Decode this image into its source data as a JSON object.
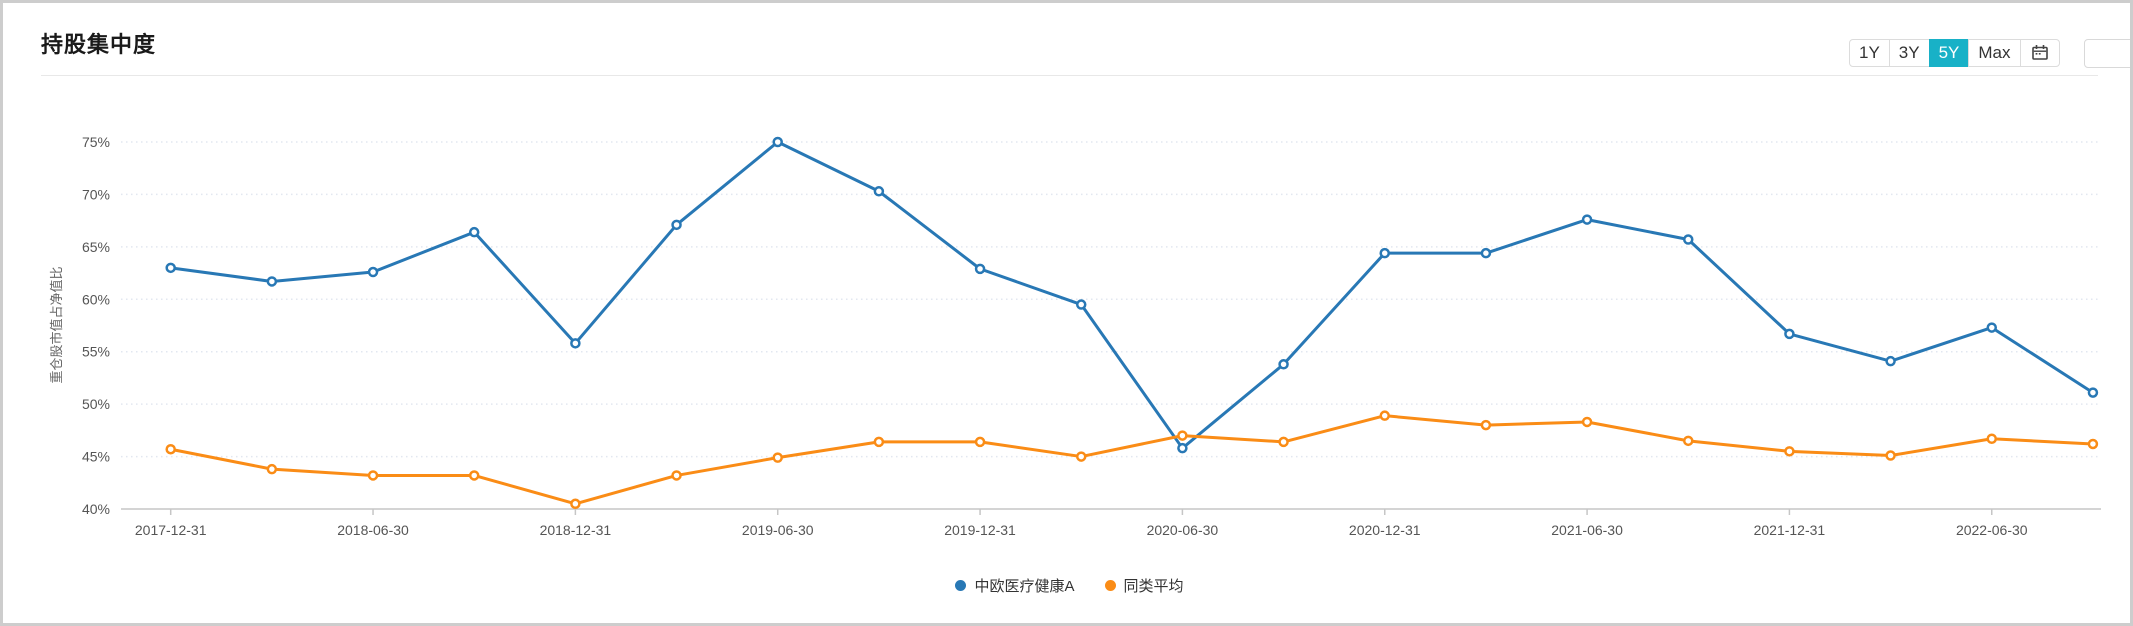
{
  "header": {
    "title": "持股集中度",
    "range_buttons": [
      {
        "label": "1Y",
        "active": false
      },
      {
        "label": "3Y",
        "active": false
      },
      {
        "label": "5Y",
        "active": true
      },
      {
        "label": "Max",
        "active": false
      }
    ],
    "calendar_icon": "calendar-icon"
  },
  "colors": {
    "active_button_bg": "#18b1c7",
    "series_blue": "#2878b5",
    "series_orange": "#fa8c16",
    "grid_dotted": "#e2e7f0",
    "axis_line": "#c6c6c6",
    "tick_text": "#555555",
    "title_text": "#1a1a1a"
  },
  "chart_data": {
    "type": "line",
    "title": "持股集中度",
    "xlabel": "",
    "ylabel": "重仓股市值占净值比",
    "ylim": [
      40,
      75
    ],
    "ytick_step": 5,
    "ytick_suffix": "%",
    "grid": "horizontal-dotted",
    "legend_position": "bottom",
    "x_label_every": 2,
    "x": [
      "2017-12-31",
      "2018-03-31",
      "2018-06-30",
      "2018-09-30",
      "2018-12-31",
      "2019-03-31",
      "2019-06-30",
      "2019-09-30",
      "2019-12-31",
      "2020-03-31",
      "2020-06-30",
      "2020-09-30",
      "2020-12-31",
      "2021-03-31",
      "2021-06-30",
      "2021-09-30",
      "2021-12-31",
      "2022-03-31",
      "2022-06-30",
      "2022-09-30"
    ],
    "series": [
      {
        "name": "中欧医疗健康A",
        "color": "#2878b5",
        "values": [
          63.0,
          61.7,
          62.6,
          66.4,
          55.8,
          67.1,
          75.0,
          70.3,
          62.9,
          59.5,
          45.8,
          53.8,
          64.4,
          64.4,
          67.6,
          65.7,
          56.7,
          54.1,
          57.3,
          51.1
        ]
      },
      {
        "name": "同类平均",
        "color": "#fa8c16",
        "values": [
          45.7,
          43.8,
          43.2,
          43.2,
          40.5,
          43.2,
          44.9,
          46.4,
          46.4,
          45.0,
          47.0,
          46.4,
          48.9,
          48.0,
          48.3,
          46.5,
          45.5,
          45.1,
          46.7,
          46.2
        ]
      }
    ]
  }
}
